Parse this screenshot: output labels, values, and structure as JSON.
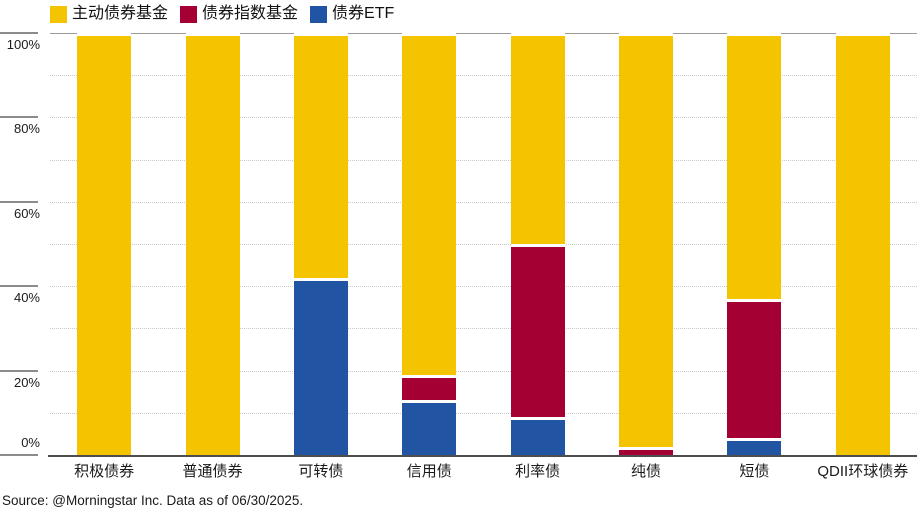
{
  "legend": {
    "items": [
      {
        "label": "主动债券基金",
        "color": "#F5C400"
      },
      {
        "label": "债券指数基金",
        "color": "#A50034"
      },
      {
        "label": "债券ETF",
        "color": "#2155A4"
      }
    ]
  },
  "chart_data": {
    "type": "bar",
    "stacked": true,
    "orientation": "vertical",
    "unit": "percent",
    "categories": [
      "积极债券",
      "普通债券",
      "可转债",
      "信用债",
      "利率债",
      "纯债",
      "短债",
      "QDII环球债券"
    ],
    "series": [
      {
        "name": "债券ETF",
        "color": "#2155A4",
        "values": [
          0,
          0,
          42,
          13,
          9,
          0,
          4,
          0
        ]
      },
      {
        "name": "债券指数基金",
        "color": "#A50034",
        "values": [
          0,
          0,
          0,
          6,
          41,
          2,
          33,
          0
        ]
      },
      {
        "name": "主动债券基金",
        "color": "#F5C400",
        "values": [
          100,
          100,
          58,
          81,
          50,
          98,
          63,
          100
        ]
      }
    ],
    "title": "",
    "xlabel": "",
    "ylabel": "",
    "ylim": [
      0,
      100
    ],
    "y_tick_labels": [
      "0%",
      "20%",
      "40%",
      "60%",
      "80%",
      "100%"
    ],
    "y_major_step": 20,
    "y_minor_dotted_step": 10,
    "grid": "horizontal dotted minor lines, solid top line at 100%, solid dark baseline at 0%",
    "legend_position": "top-left"
  },
  "source": {
    "text": "Source: @Morningstar Inc. Data as of 06/30/2025."
  }
}
